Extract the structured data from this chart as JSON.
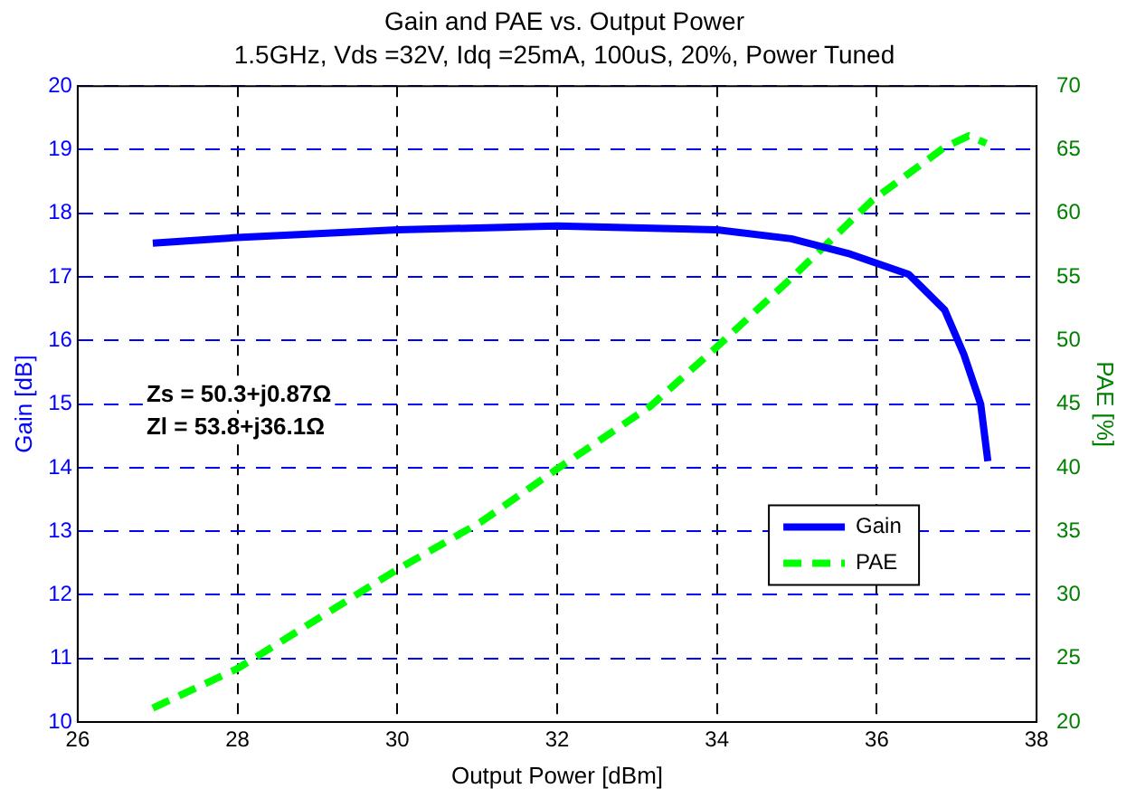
{
  "chart_data": {
    "type": "line",
    "title": "Gain and PAE vs. Output Power",
    "subtitle": "1.5GHz, Vds =32V, Idq =25mA, 100uS, 20%, Power Tuned",
    "xlabel": "Output Power [dBm]",
    "ylabel": "Gain [dB]",
    "y2label": "PAE [%]",
    "xlim": [
      26,
      38
    ],
    "xticks": [
      26,
      28,
      30,
      32,
      34,
      36,
      38
    ],
    "ylim": [
      10,
      20
    ],
    "yticks": [
      10,
      11,
      12,
      13,
      14,
      15,
      16,
      17,
      18,
      19,
      20
    ],
    "y2lim": [
      20,
      70
    ],
    "y2ticks": [
      20,
      25,
      30,
      35,
      40,
      45,
      50,
      55,
      60,
      65,
      70
    ],
    "grid": true,
    "legend": "right",
    "marker": "none",
    "annotations": [
      "Zs = 50.3+j0.87Ω",
      "Zl = 53.8+j36.1Ω"
    ],
    "series": [
      {
        "name": "Gain",
        "color": "#0000ff",
        "line_style": "solid",
        "x": [
          26.94,
          28,
          30,
          32,
          34,
          34.93,
          35.64,
          36.4,
          36.85,
          37.09,
          37.3,
          37.39
        ],
        "values": [
          17.53,
          17.62,
          17.74,
          17.8,
          17.74,
          17.6,
          17.37,
          17.04,
          16.48,
          15.78,
          15.0,
          14.1
        ]
      },
      {
        "name": "PAE",
        "color": "#00ff00",
        "line_style": "dashed",
        "axis": "y2",
        "x": [
          26.94,
          28,
          30,
          31.04,
          32,
          33.16,
          34,
          34.93,
          35.94,
          36.85,
          37.15,
          37.37
        ],
        "values": [
          21.1,
          24.2,
          32.0,
          35.7,
          39.9,
          44.8,
          49.5,
          54.9,
          61.0,
          65.2,
          66.1,
          65.5
        ]
      }
    ]
  }
}
